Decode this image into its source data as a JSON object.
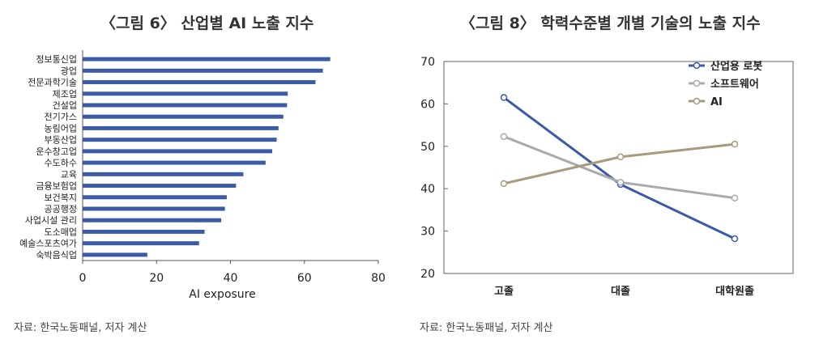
{
  "left": {
    "title": "〈그림 6〉 산업별 AI 노출 지수",
    "source": "자료: 한국노동패널, 저자 계산"
  },
  "right": {
    "title": "〈그림 8〉 학력수준별 개별 기술의 노출 지수",
    "source": "자료: 한국노동패널, 저자 계산"
  },
  "chart_data": [
    {
      "type": "bar",
      "orientation": "horizontal",
      "title": "〈그림 6〉 산업별 AI 노출 지수",
      "xlabel": "AI exposure",
      "ylabel": "",
      "xlim": [
        0,
        80
      ],
      "xticks": [
        0,
        20,
        40,
        60,
        80
      ],
      "color": "#3c5aa6",
      "grid": false,
      "categories": [
        "정보통신업",
        "광업",
        "전문과학기술",
        "제조업",
        "건설업",
        "전기가스",
        "농림어업",
        "부동산업",
        "운수창고업",
        "수도하수",
        "교육",
        "금융보험업",
        "보건복지",
        "공공행정",
        "사업시설 관리",
        "도소매업",
        "예술스포츠여가",
        "숙박음식업"
      ],
      "values": [
        67,
        65,
        63,
        55.5,
        55.3,
        54.3,
        53,
        52.5,
        51.3,
        49.5,
        43.5,
        41.5,
        39,
        38.5,
        37.5,
        33,
        31.5,
        17.5
      ]
    },
    {
      "type": "line",
      "title": "〈그림 8〉 학력수준별 개별 기술의 노출 지수",
      "xlabel": "",
      "ylabel": "",
      "ylim": [
        20,
        70
      ],
      "yticks": [
        20,
        30,
        40,
        50,
        60,
        70
      ],
      "grid": false,
      "legend": "top-right",
      "categories": [
        "고졸",
        "대졸",
        "대학원졸"
      ],
      "series": [
        {
          "name": "산업용 로봇",
          "color": "#3c5aa6",
          "values": [
            61.5,
            41,
            28.2
          ]
        },
        {
          "name": "소프트웨어",
          "color": "#aaaaaa",
          "values": [
            52.3,
            41.5,
            37.8
          ]
        },
        {
          "name": "AI",
          "color": "#a89a7c",
          "values": [
            41.2,
            47.5,
            50.5
          ]
        }
      ]
    }
  ]
}
